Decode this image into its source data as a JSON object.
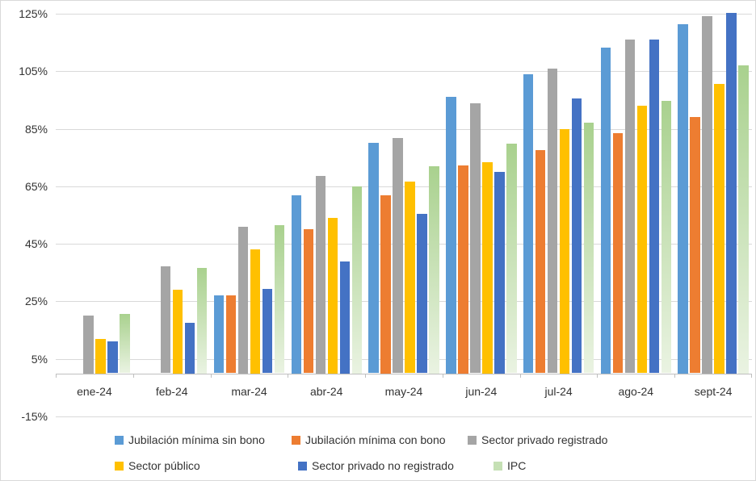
{
  "chart_data": {
    "type": "bar",
    "title": "",
    "xlabel": "",
    "ylabel": "",
    "ylim": [
      -15,
      125
    ],
    "grid": "horizontal",
    "legend_position": "bottom",
    "categories": [
      "ene-24",
      "feb-24",
      "mar-24",
      "abr-24",
      "may-24",
      "jun-24",
      "jul-24",
      "ago-24",
      "sept-24"
    ],
    "yticks": [
      {
        "value": 125,
        "label": "125%"
      },
      {
        "value": 105,
        "label": "105%"
      },
      {
        "value": 85,
        "label": "85%"
      },
      {
        "value": 65,
        "label": "65%"
      },
      {
        "value": 45,
        "label": "45%"
      },
      {
        "value": 25,
        "label": "25%"
      },
      {
        "value": 5,
        "label": "5%"
      },
      {
        "value": -15,
        "label": "-15%"
      }
    ],
    "series": [
      {
        "name": "Jubilación mínima sin bono",
        "color": "#5B9BD5",
        "values": [
          null,
          null,
          27,
          62,
          80,
          96,
          103.9,
          113.2,
          121.5
        ]
      },
      {
        "name": "Jubilación mínima con bono",
        "color": "#ED7D31",
        "values": [
          null,
          null,
          27.2,
          50,
          62,
          72.4,
          77.5,
          83.5,
          89
        ]
      },
      {
        "name": "Sector privado registrado",
        "color": "#A5A5A5",
        "values": [
          20,
          37.2,
          51,
          68.6,
          81.7,
          93.8,
          106,
          116.1,
          124.3
        ]
      },
      {
        "name": "Sector público",
        "color": "#FFC000",
        "values": [
          12,
          29,
          43.2,
          54,
          66.7,
          73.3,
          85,
          93.1,
          100.6
        ]
      },
      {
        "name": "Sector privado no registrado",
        "color": "#4472C4",
        "values": [
          11,
          17.5,
          29.4,
          39,
          55.3,
          70,
          95.5,
          115.9,
          125.2
        ]
      },
      {
        "name": "IPC",
        "color": "#C5E0B4",
        "gradient_top": "#A9D18E",
        "gradient_bottom": "#EAF3E2",
        "values": [
          20.6,
          36.6,
          51.6,
          65,
          71.9,
          79.8,
          87,
          94.8,
          107
        ]
      }
    ]
  }
}
